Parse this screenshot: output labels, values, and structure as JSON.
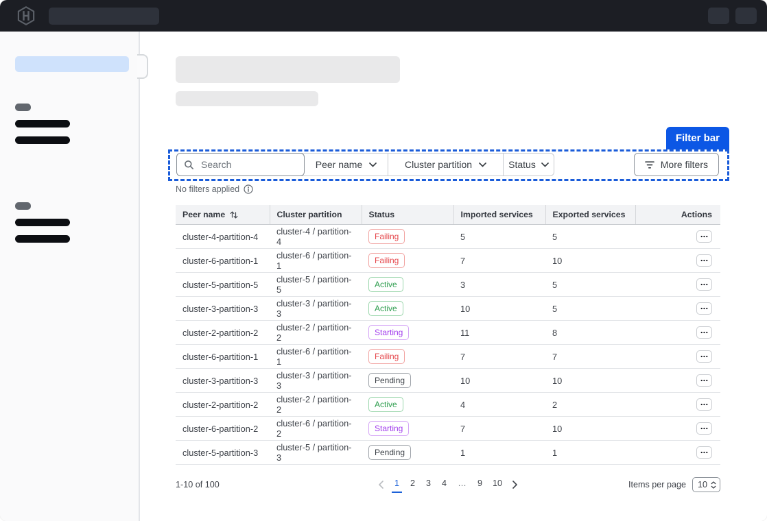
{
  "colors": {
    "accent_blue": "#0c57e5",
    "dashed_blue": "#1a5cd9",
    "link_blue": "#1c61d8"
  },
  "filter_bar": {
    "annotation_label": "Filter bar",
    "search_placeholder": "Search",
    "dropdowns": [
      {
        "label": "Peer name"
      },
      {
        "label": "Cluster partition"
      },
      {
        "label": "Status"
      }
    ],
    "more_filters_label": "More filters",
    "status_text": "No filters applied"
  },
  "table": {
    "columns": [
      "Peer name",
      "Cluster partition",
      "Status",
      "Imported services",
      "Exported services",
      "Actions"
    ],
    "status_styles": {
      "Failing": {
        "text": "#e5484d",
        "border": "#f1a3a1"
      },
      "Active": {
        "text": "#2f9e4f",
        "border": "#9ad6ab"
      },
      "Starting": {
        "text": "#a13bec",
        "border": "#d4a4f6"
      },
      "Pending": {
        "text": "#3b4046",
        "border": "#9da2a8"
      }
    },
    "rows": [
      {
        "peer_name": "cluster-4-partition-4",
        "cluster_partition": "cluster-4 / partition-4",
        "status": "Failing",
        "imported": "5",
        "exported": "5"
      },
      {
        "peer_name": "cluster-6-partition-1",
        "cluster_partition": "cluster-6 / partition-1",
        "status": "Failing",
        "imported": "7",
        "exported": "10"
      },
      {
        "peer_name": "cluster-5-partition-5",
        "cluster_partition": "cluster-5 / partition-5",
        "status": "Active",
        "imported": "3",
        "exported": "5"
      },
      {
        "peer_name": "cluster-3-partition-3",
        "cluster_partition": "cluster-3 / partition-3",
        "status": "Active",
        "imported": "10",
        "exported": "5"
      },
      {
        "peer_name": "cluster-2-partition-2",
        "cluster_partition": "cluster-2 / partition-2",
        "status": "Starting",
        "imported": "11",
        "exported": "8"
      },
      {
        "peer_name": "cluster-6-partition-1",
        "cluster_partition": "cluster-6 / partition-1",
        "status": "Failing",
        "imported": "7",
        "exported": "7"
      },
      {
        "peer_name": "cluster-3-partition-3",
        "cluster_partition": "cluster-3 / partition-3",
        "status": "Pending",
        "imported": "10",
        "exported": "10"
      },
      {
        "peer_name": "cluster-2-partition-2",
        "cluster_partition": "cluster-2 / partition-2",
        "status": "Active",
        "imported": "4",
        "exported": "2"
      },
      {
        "peer_name": "cluster-6-partition-2",
        "cluster_partition": "cluster-6 / partition-2",
        "status": "Starting",
        "imported": "7",
        "exported": "10"
      },
      {
        "peer_name": "cluster-5-partition-3",
        "cluster_partition": "cluster-5 / partition-3",
        "status": "Pending",
        "imported": "1",
        "exported": "1"
      }
    ]
  },
  "pagination": {
    "range_text": "1-10 of 100",
    "pages": [
      "1",
      "2",
      "3",
      "4",
      "…",
      "9",
      "10"
    ],
    "active_page": "1",
    "items_per_page_label": "Items per page",
    "items_per_page_value": "10"
  }
}
